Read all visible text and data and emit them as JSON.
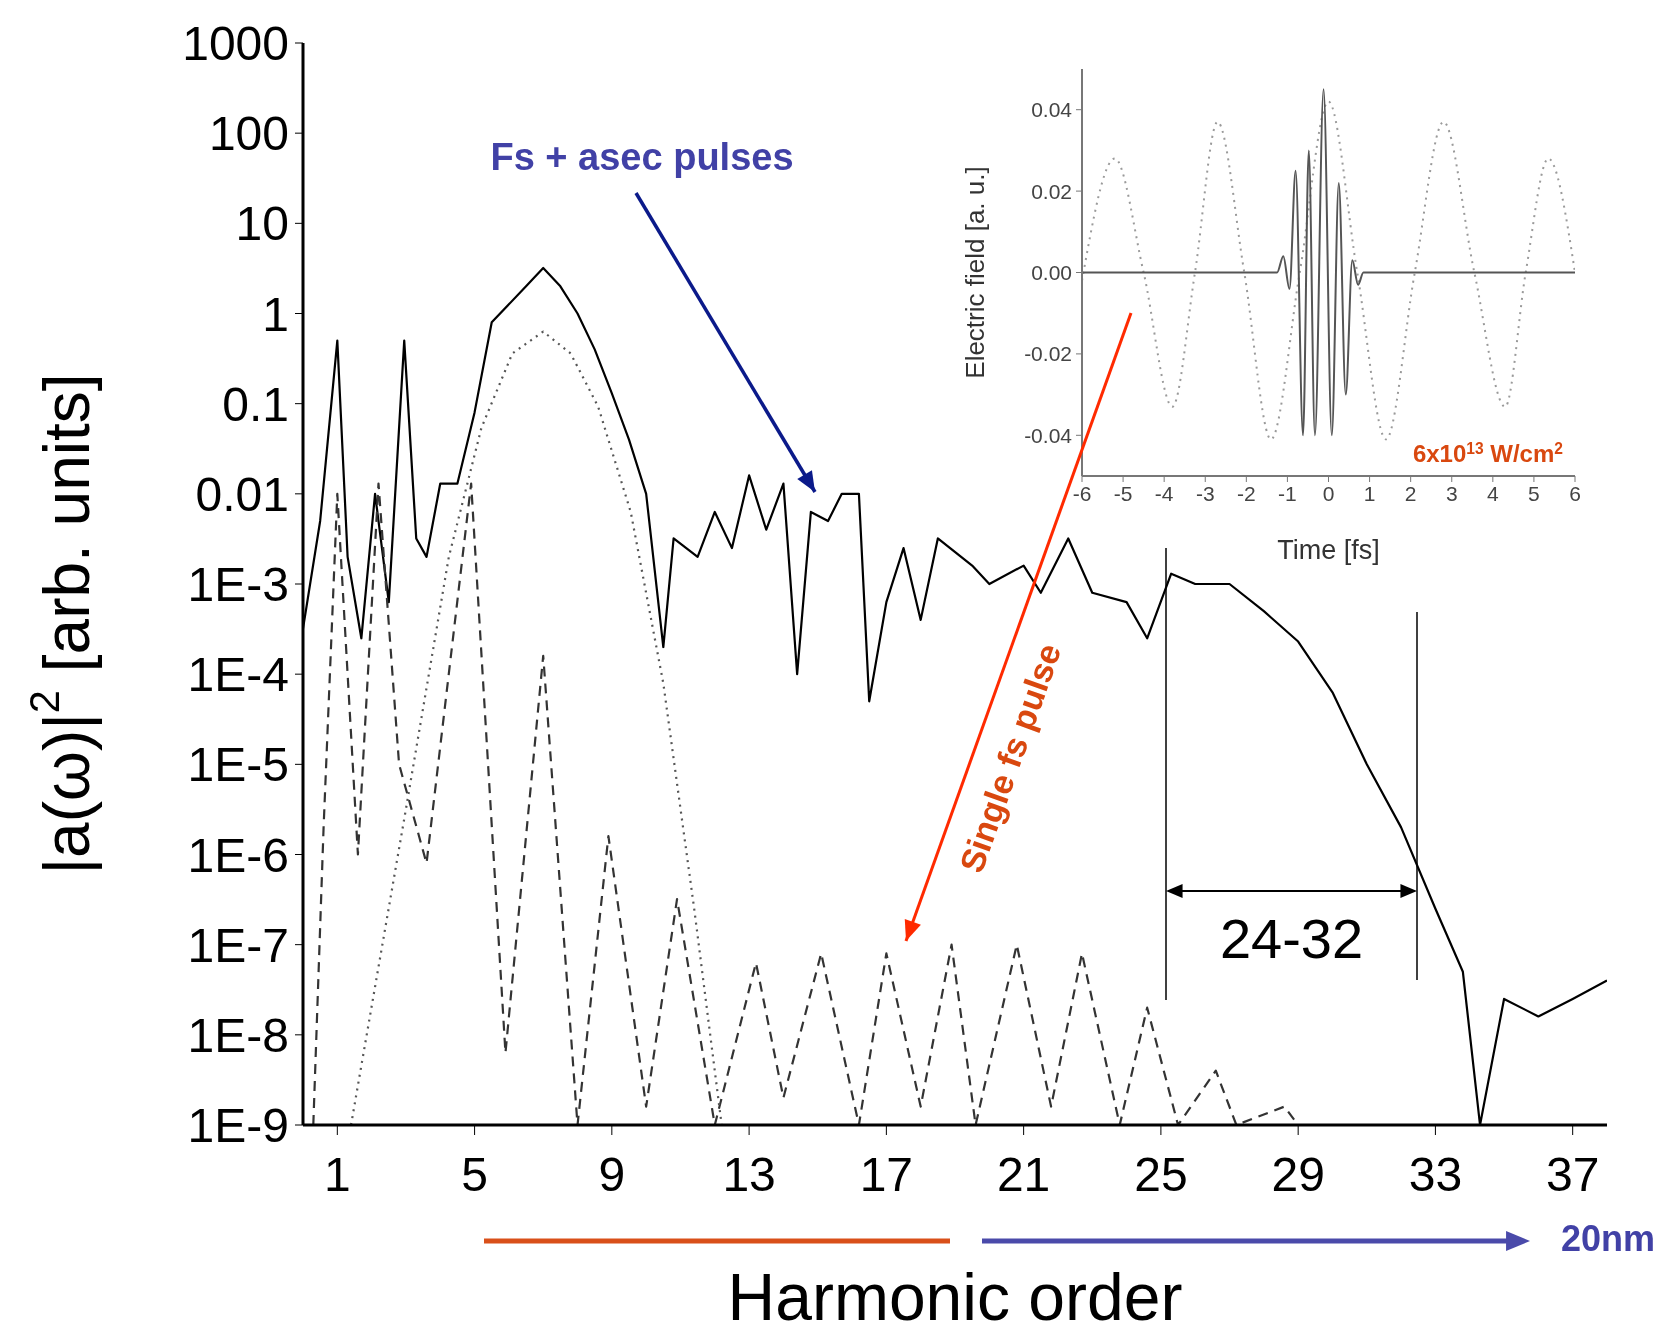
{
  "chart_data": [
    {
      "type": "line",
      "xlabel": "Harmonic order",
      "ylabel": "|a(ω)|$^{2}$ [arb. units]",
      "log": "y",
      "xlim": [
        0,
        38
      ],
      "xticks": [
        1,
        5,
        9,
        13,
        17,
        21,
        25,
        29,
        33,
        37
      ],
      "ylim": [
        1e-09,
        1000
      ],
      "yticks": [
        {
          "value": 1e-09,
          "label": "1E-9"
        },
        {
          "value": 1e-08,
          "label": "1E-8"
        },
        {
          "value": 1e-07,
          "label": "1E-7"
        },
        {
          "value": 1e-06,
          "label": "1E-6"
        },
        {
          "value": 1e-05,
          "label": "1E-5"
        },
        {
          "value": 0.0001,
          "label": "1E-4"
        },
        {
          "value": 0.001,
          "label": "1E-3"
        },
        0.01,
        0.1,
        1,
        10,
        100,
        1000
      ],
      "series": [
        {
          "color": "#000000",
          "line_style": "solid",
          "x": [
            0,
            0.5,
            1,
            1.3,
            1.7,
            2.1,
            2.5,
            2.95,
            3.3,
            3.6,
            4,
            4.5,
            5,
            5.5,
            6.5,
            7,
            7.5,
            8,
            8.5,
            9,
            9.5,
            10,
            10.5,
            10.8,
            11.5,
            12,
            12.5,
            13,
            13.5,
            14,
            14.4,
            14.8,
            15.3,
            15.7,
            16.2,
            16.5,
            17,
            17.5,
            18,
            18.5,
            19.5,
            20,
            21,
            21.5,
            22.3,
            23,
            24,
            24.6,
            25.3,
            26,
            27,
            28,
            29,
            30,
            31,
            32,
            33,
            33.8,
            34.3,
            35,
            36,
            37,
            38
          ],
          "values": [
            0.00032,
            0.005,
            0.5,
            0.002,
            0.00025,
            0.01,
            0.00063,
            0.5,
            0.0032,
            0.002,
            0.013,
            0.013,
            0.08,
            0.8,
            2,
            3.2,
            2,
            1,
            0.4,
            0.13,
            0.04,
            0.01,
            0.0002,
            0.0032,
            0.002,
            0.0063,
            0.0025,
            0.016,
            0.004,
            0.013,
            0.0001,
            0.0063,
            0.005,
            0.01,
            0.01,
            5e-05,
            0.00063,
            0.0025,
            0.0004,
            0.0032,
            0.0016,
            0.001,
            0.0016,
            0.0008,
            0.0032,
            0.0008,
            0.00063,
            0.00025,
            0.0013,
            0.001,
            0.001,
            0.0005,
            0.00023,
            6.3e-05,
            1e-05,
            2e-06,
            2.5e-07,
            5e-08,
            1e-09,
            2.5e-08,
            1.6e-08,
            2.5e-08,
            4e-08
          ]
        },
        {
          "color": "#333333",
          "line_style": "dashed",
          "x": [
            0.3,
            0.6,
            1,
            1.6,
            2.2,
            2.8,
            3.6,
            4.9,
            5.9,
            7,
            8,
            8.9,
            10,
            10.9,
            12,
            13.2,
            14,
            15.1,
            16.2,
            17,
            18,
            18.9,
            19.6,
            20.8,
            21.8,
            22.7,
            23.8,
            24.6,
            25.5,
            26.6,
            27.2,
            28.6,
            29
          ],
          "values": [
            1e-09,
            2e-06,
            0.01,
            1e-06,
            0.013,
            1e-05,
            8e-07,
            0.013,
            6.3e-09,
            0.00016,
            1e-09,
            1.6e-06,
            1.6e-09,
            3.2e-07,
            1e-09,
            6.3e-08,
            2e-09,
            8e-08,
            1e-09,
            8e-08,
            1.6e-09,
            1e-07,
            1e-09,
            1e-07,
            1.6e-09,
            8e-08,
            1e-09,
            2e-08,
            1e-09,
            4e-09,
            1e-09,
            1.6e-09,
            1e-09
          ]
        },
        {
          "color": "#555555",
          "line_style": "dotted",
          "x": [
            1.4,
            3,
            4.25,
            5.2,
            6.1,
            7,
            7.8,
            8.6,
            9.55,
            10.5,
            11.4,
            12.2
          ],
          "values": [
            1e-09,
            3.2e-06,
            0.002,
            0.054,
            0.36,
            0.63,
            0.36,
            0.093,
            0.0063,
            7.9e-05,
            2.5e-07,
            1e-09
          ]
        }
      ],
      "annotations": [
        "Fs + asec pulses",
        "Single fs pulse",
        "20nm",
        "24-32"
      ]
    },
    {
      "type": "line",
      "xlabel": "Time [fs]",
      "ylabel": "Electric field [a. u.]",
      "xlim": [
        -6,
        6
      ],
      "xticks": [
        -6,
        -5,
        -4,
        -3,
        -2,
        -1,
        0,
        1,
        2,
        3,
        4,
        5,
        6
      ],
      "ylim": [
        -0.05,
        0.05
      ],
      "yticks": [
        -0.04,
        -0.02,
        {
          "value": 0,
          "label": "0.00"
        },
        0.02,
        0.04
      ],
      "series": [
        {
          "color": "#9a9a9a",
          "line_style": "dotted",
          "x": [
            -6,
            -5.2,
            -4.5,
            -3.8,
            -3.25,
            -2.7,
            -2.05,
            -1.4,
            -0.7,
            0,
            0.7,
            1.4,
            2.1,
            2.8,
            3.55,
            4.3,
            4.8,
            5.35,
            6
          ],
          "values": [
            -0.002,
            0.028,
            0,
            -0.033,
            0,
            0.037,
            0,
            -0.041,
            0,
            0.042,
            0,
            -0.041,
            0,
            0.037,
            0,
            -0.033,
            0,
            0.028,
            0
          ]
        },
        {
          "color": "#555555",
          "line_style": "solid",
          "x": [
            -6,
            -1.25,
            -1.1,
            -0.95,
            -0.8,
            -0.62,
            -0.48,
            -0.33,
            -0.12,
            0.08,
            0.25,
            0.42,
            0.58,
            0.72,
            0.85,
            6
          ],
          "values": [
            0,
            0,
            0.004,
            -0.004,
            0.025,
            -0.04,
            0.03,
            -0.04,
            0.045,
            -0.04,
            0.022,
            -0.03,
            0.003,
            -0.003,
            0,
            0
          ]
        }
      ],
      "annotations": [
        "6x10$^{13}$ W/cm$^{2}$"
      ]
    }
  ]
}
